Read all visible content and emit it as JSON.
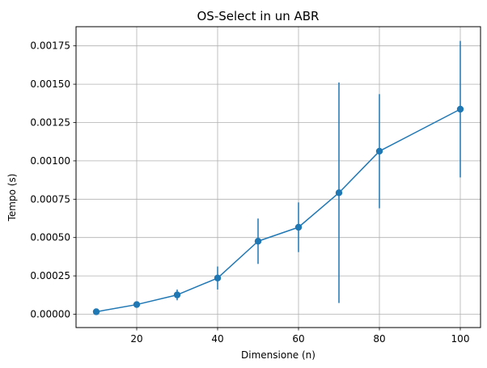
{
  "chart_data": {
    "type": "line",
    "title": "OS-Select in un ABR",
    "xlabel": "Dimensione (n)",
    "ylabel": "Tempo (s)",
    "xlim": [
      5,
      105
    ],
    "ylim": [
      -8.7e-05,
      0.001875
    ],
    "xticks": [
      20,
      40,
      60,
      80,
      100
    ],
    "xtick_labels": [
      "20",
      "40",
      "60",
      "80",
      "100"
    ],
    "yticks": [
      0,
      0.00025,
      0.0005,
      0.00075,
      0.001,
      0.00125,
      0.0015,
      0.00175
    ],
    "ytick_labels": [
      "0.00000",
      "0.00025",
      "0.00050",
      "0.00075",
      "0.00100",
      "0.00125",
      "0.00150",
      "0.00175"
    ],
    "grid": true,
    "series": [
      {
        "color": "#1f77b4",
        "marker": "circle",
        "x": [
          10,
          20,
          30,
          40,
          50,
          60,
          70,
          80,
          90,
          100
        ],
        "y": [
          1.6e-05,
          6.3e-05,
          0.000126,
          0.000236,
          0.000476,
          0.000567,
          0.000792,
          0.001063,
          null,
          0.001337
        ],
        "yerr": [
          4e-06,
          1e-05,
          3.5e-05,
          7.5e-05,
          0.000148,
          0.000162,
          0.000719,
          0.000372,
          null,
          0.000445
        ]
      }
    ]
  }
}
